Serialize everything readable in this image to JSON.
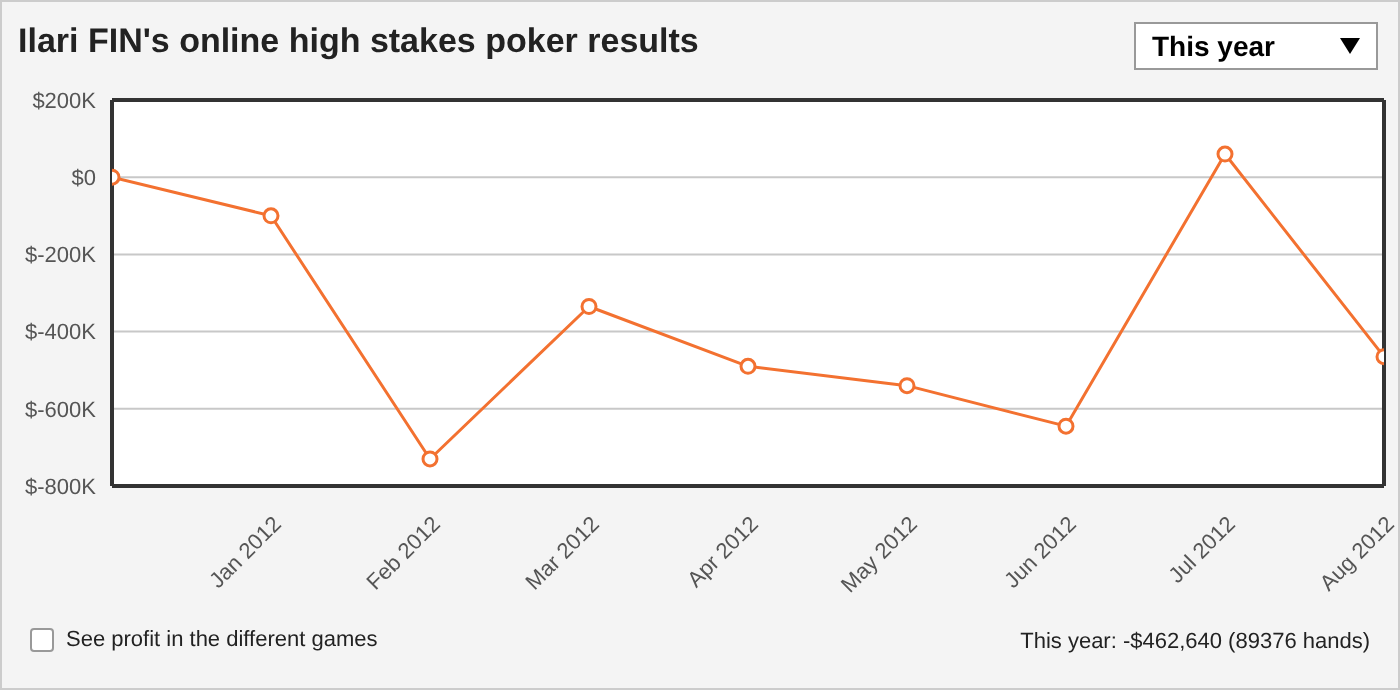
{
  "chart_data": {
    "type": "line",
    "title": "Ilari FIN's online high stakes poker results",
    "categories": [
      null,
      "Jan 2012",
      "Feb 2012",
      "Mar 2012",
      "Apr 2012",
      "May 2012",
      "Jun 2012",
      "Jul 2012",
      "Aug 2012"
    ],
    "values": [
      0,
      -100000,
      -730000,
      -335000,
      -490000,
      -540000,
      -645000,
      60000,
      -465000
    ],
    "color": "#f37130",
    "marker": "circle",
    "line_style": "solid",
    "grid": "y",
    "ylim": [
      -800000,
      200000
    ],
    "yticks": [
      {
        "value": -800000,
        "label": "$-800K"
      },
      {
        "value": -600000,
        "label": "$-600K"
      },
      {
        "value": -400000,
        "label": "$-400K"
      },
      {
        "value": -200000,
        "label": "$-200K"
      },
      {
        "value": 0,
        "label": "$0"
      },
      {
        "value": 200000,
        "label": "$200K"
      }
    ],
    "annotations": [
      "This year",
      "See profit in the different games",
      "This year: -$462,640 (89376 hands)"
    ]
  }
}
